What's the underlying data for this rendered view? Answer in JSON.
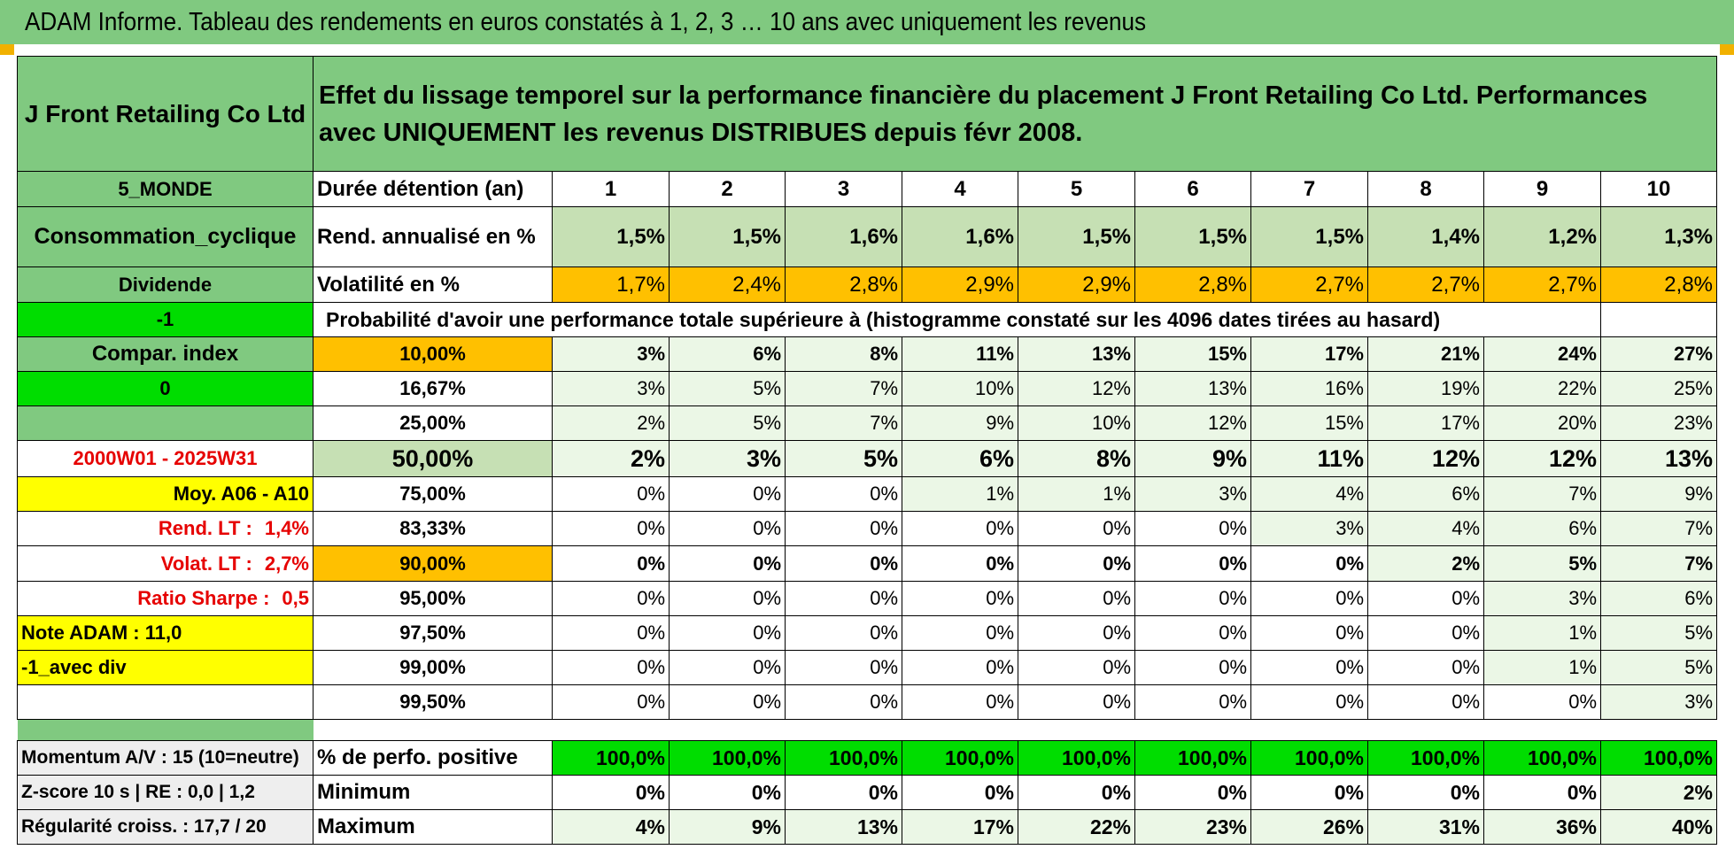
{
  "title": "ADAM Informe. Tableau des rendements en euros constatés à 1, 2, 3 … 10 ans avec uniquement les revenus",
  "header": {
    "fund_name": "J Front Retailing Co Ltd",
    "description": "Effet du lissage temporel sur la performance financière du placement J Front Retailing Co Ltd. Performances avec UNIQUEMENT les revenus DISTRIBUES depuis févr 2008."
  },
  "left_panel": {
    "zone": "5_MONDE",
    "sector": "Consommation_cyclique",
    "type": "Dividende",
    "value_a": "-1",
    "compar_index": "Compar. index",
    "value_b": "0",
    "blank": "",
    "period": "2000W01 - 2025W31",
    "moy": "Moy. A06 - A10",
    "rend_lt_label": "Rend. LT :",
    "rend_lt_value": "1,4%",
    "volat_lt_label": "Volat. LT :",
    "volat_lt_value": "2,7%",
    "sharpe_label": "Ratio Sharpe :",
    "sharpe_value": "0,5",
    "note_adam": "Note ADAM : 11,0",
    "avec_div": "-1_avec div"
  },
  "duration_row": {
    "label": "Durée détention (an)",
    "years": [
      "1",
      "2",
      "3",
      "4",
      "5",
      "6",
      "7",
      "8",
      "9",
      "10"
    ]
  },
  "rend_row": {
    "label": "Rend. annualisé en %",
    "values": [
      "1,5%",
      "1,5%",
      "1,6%",
      "1,6%",
      "1,5%",
      "1,5%",
      "1,5%",
      "1,4%",
      "1,2%",
      "1,3%"
    ]
  },
  "vol_row": {
    "label": "Volatilité en %",
    "values": [
      "1,7%",
      "2,4%",
      "2,8%",
      "2,9%",
      "2,9%",
      "2,8%",
      "2,7%",
      "2,7%",
      "2,7%",
      "2,8%"
    ]
  },
  "prob_title": "Probabilité d'avoir une performance totale supérieure à (histogramme constaté sur les 4096 dates tirées au hasard)",
  "prob_rows": [
    {
      "threshold": "10,00%",
      "values": [
        "3%",
        "6%",
        "8%",
        "11%",
        "13%",
        "15%",
        "17%",
        "21%",
        "24%",
        "27%"
      ]
    },
    {
      "threshold": "16,67%",
      "values": [
        "3%",
        "5%",
        "7%",
        "10%",
        "12%",
        "13%",
        "16%",
        "19%",
        "22%",
        "25%"
      ]
    },
    {
      "threshold": "25,00%",
      "values": [
        "2%",
        "5%",
        "7%",
        "9%",
        "10%",
        "12%",
        "15%",
        "17%",
        "20%",
        "23%"
      ]
    },
    {
      "threshold": "50,00%",
      "values": [
        "2%",
        "3%",
        "5%",
        "6%",
        "8%",
        "9%",
        "11%",
        "12%",
        "12%",
        "13%"
      ]
    },
    {
      "threshold": "75,00%",
      "values": [
        "0%",
        "0%",
        "0%",
        "1%",
        "1%",
        "3%",
        "4%",
        "6%",
        "7%",
        "9%"
      ]
    },
    {
      "threshold": "83,33%",
      "values": [
        "0%",
        "0%",
        "0%",
        "0%",
        "0%",
        "0%",
        "3%",
        "4%",
        "6%",
        "7%"
      ]
    },
    {
      "threshold": "90,00%",
      "values": [
        "0%",
        "0%",
        "0%",
        "0%",
        "0%",
        "0%",
        "0%",
        "2%",
        "5%",
        "7%"
      ]
    },
    {
      "threshold": "95,00%",
      "values": [
        "0%",
        "0%",
        "0%",
        "0%",
        "0%",
        "0%",
        "0%",
        "0%",
        "3%",
        "6%"
      ]
    },
    {
      "threshold": "97,50%",
      "values": [
        "0%",
        "0%",
        "0%",
        "0%",
        "0%",
        "0%",
        "0%",
        "0%",
        "1%",
        "5%"
      ]
    },
    {
      "threshold": "99,00%",
      "values": [
        "0%",
        "0%",
        "0%",
        "0%",
        "0%",
        "0%",
        "0%",
        "0%",
        "1%",
        "5%"
      ]
    },
    {
      "threshold": "99,50%",
      "values": [
        "0%",
        "0%",
        "0%",
        "0%",
        "0%",
        "0%",
        "0%",
        "0%",
        "0%",
        "3%"
      ]
    }
  ],
  "bottom": {
    "momentum": "Momentum A/V : 15 (10=neutre)",
    "zscore": "Z-score 10 s | RE : 0,0 | 1,2",
    "regularite": "Régularité croiss. : 17,7 / 20",
    "pos_label": "% de perfo. positive",
    "pos_values": [
      "100,0%",
      "100,0%",
      "100,0%",
      "100,0%",
      "100,0%",
      "100,0%",
      "100,0%",
      "100,0%",
      "100,0%",
      "100,0%"
    ],
    "min_label": "Minimum",
    "min_values": [
      "0%",
      "0%",
      "0%",
      "0%",
      "0%",
      "0%",
      "0%",
      "0%",
      "0%",
      "2%"
    ],
    "max_label": "Maximum",
    "max_values": [
      "4%",
      "9%",
      "13%",
      "17%",
      "22%",
      "23%",
      "26%",
      "31%",
      "36%",
      "40%"
    ]
  },
  "colors": {
    "header_green": "#80c980",
    "bright_green": "#00dd00",
    "light_green": "#c6e0b4",
    "orange": "#ffc000",
    "yellow": "#ffff00",
    "red_text": "#e60000"
  }
}
